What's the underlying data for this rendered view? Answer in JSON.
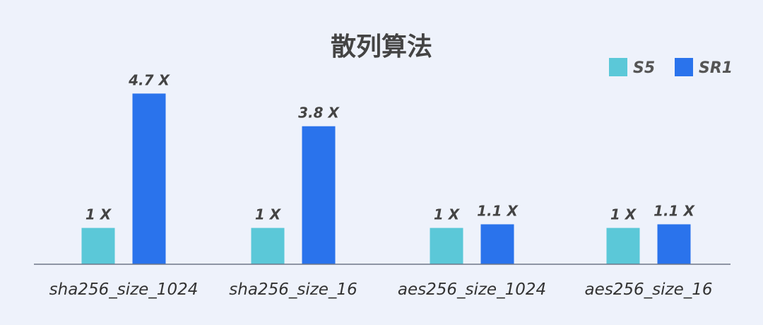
{
  "chart_data": {
    "type": "bar",
    "title": "散列算法",
    "categories": [
      "sha256_size_1024",
      "sha256_size_16",
      "aes256_size_1024",
      "aes256_size_16"
    ],
    "series": [
      {
        "name": "S5",
        "color": "#5bc8d8",
        "values": [
          1,
          1,
          1,
          1
        ],
        "labels": [
          "1 X",
          "1 X",
          "1 X",
          "1 X"
        ]
      },
      {
        "name": "SR1",
        "color": "#2a73ec",
        "values": [
          4.7,
          3.8,
          1.1,
          1.1
        ],
        "labels": [
          "4.7 X",
          "3.8 X",
          "1.1 X",
          "1.1 X"
        ]
      }
    ],
    "xlabel": "",
    "ylabel": "",
    "grid": false,
    "legend": "top-right"
  }
}
